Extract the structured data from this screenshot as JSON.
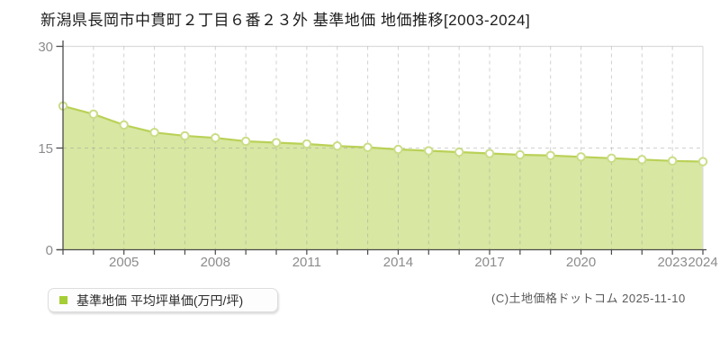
{
  "title": "新潟県長岡市中貫町２丁目６番２３外 基準地価 地価推移[2003-2024]",
  "legend": {
    "label": "基準地価 平均坪単価(万円/坪)",
    "marker_color": "#a5cd34"
  },
  "copyright": "(C)土地価格ドットコム 2025-11-10",
  "chart_data": {
    "type": "area",
    "title": "新潟県長岡市中貫町２丁目６番２３外 基準地価 地価推移[2003-2024]",
    "series_name": "基準地価 平均坪単価(万円/坪)",
    "unit": "万円/坪",
    "x": [
      2003,
      2004,
      2005,
      2006,
      2007,
      2008,
      2009,
      2010,
      2011,
      2012,
      2013,
      2014,
      2015,
      2016,
      2017,
      2018,
      2019,
      2020,
      2021,
      2022,
      2023,
      2024
    ],
    "values": [
      21.2,
      20.0,
      18.4,
      17.3,
      16.8,
      16.5,
      16.0,
      15.8,
      15.6,
      15.3,
      15.1,
      14.8,
      14.6,
      14.4,
      14.2,
      14.0,
      13.9,
      13.7,
      13.5,
      13.3,
      13.1,
      13.0
    ],
    "ylim": [
      0,
      30
    ],
    "yticks": [
      0,
      15,
      30
    ],
    "xticks": [
      2005,
      2008,
      2011,
      2014,
      2017,
      2020,
      2023,
      2024
    ],
    "grid": true,
    "legend_position": "bottom-left",
    "colors": {
      "fill": "#d8e7a2",
      "line": "#bad157",
      "point_fill": "#ffffff",
      "point_ring": "#cadd87",
      "grid": "#9a9a9a",
      "axis": "#4a4a4a",
      "tick_label": "#8c8c8c",
      "border": "#dcdcdc"
    }
  }
}
